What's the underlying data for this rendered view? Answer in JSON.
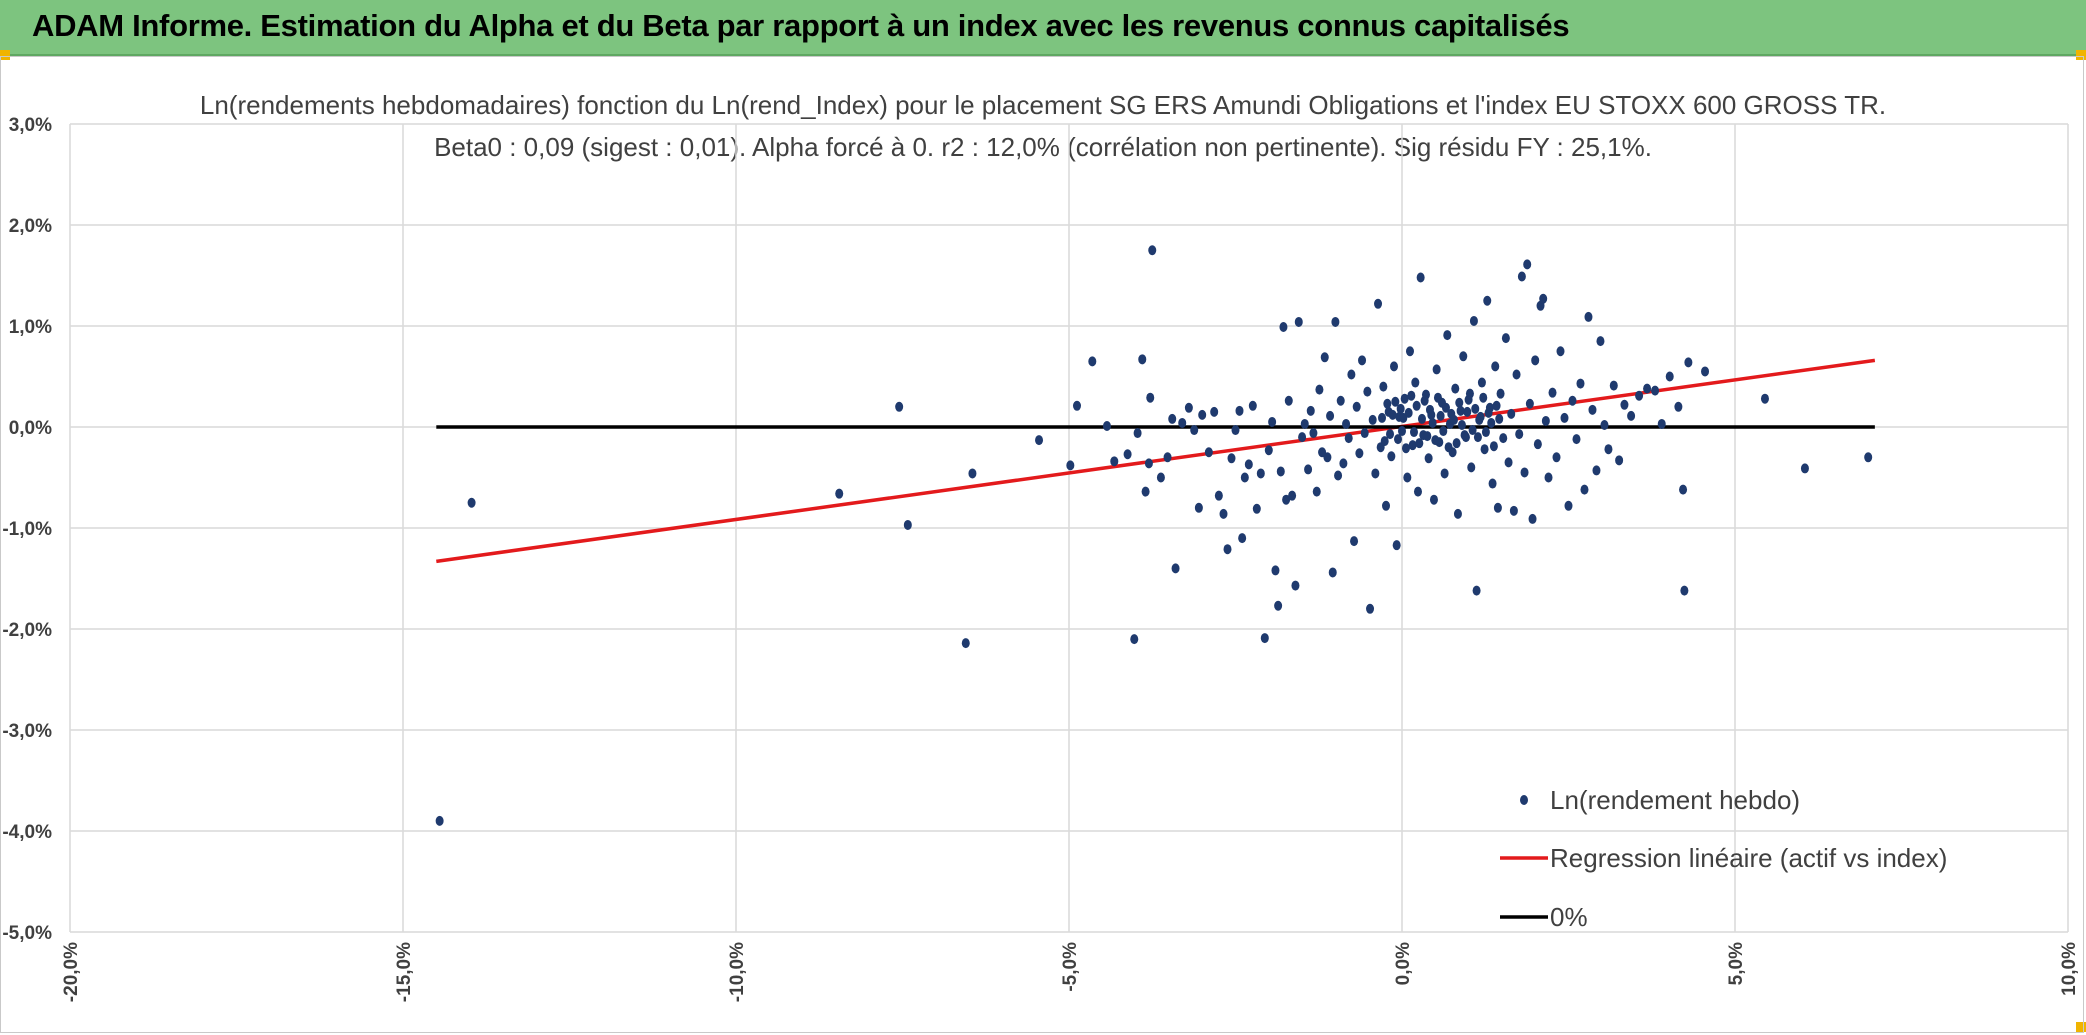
{
  "header": {
    "title": "ADAM Informe. Estimation du Alpha et du Beta par rapport à un index avec les revenus connus capitalisés"
  },
  "colors": {
    "banner": "#7dc47f",
    "points": "#1f3a6e",
    "regression": "#e31a1c",
    "zero_line": "#000000",
    "grid": "#d9d9d9"
  },
  "chart_data": {
    "type": "scatter",
    "title": "Ln(rendements hebdomadaires) fonction du Ln(rend_Index) pour le placement SG ERS Amundi Obligations et l'index EU STOXX 600 GROSS TR.",
    "subtitle": "Beta0 : 0,09 (sigest : 0,01). Alpha forcé à 0. r2 : 12,0% (corrélation non pertinente). Sig résidu FY : 25,1%.",
    "xlabel": "",
    "ylabel": "",
    "xlim": [
      -0.2,
      0.1
    ],
    "ylim": [
      -0.05,
      0.03
    ],
    "x_ticks": [
      "-20,0%",
      "-15,0%",
      "-10,0%",
      "-5,0%",
      "0,0%",
      "5,0%",
      "10,0%"
    ],
    "y_ticks": [
      "3,0%",
      "2,0%",
      "1,0%",
      "0,0%",
      "-1,0%",
      "-2,0%",
      "-3,0%",
      "-4,0%",
      "-5,0%"
    ],
    "grid": true,
    "legend_position": "bottom-right",
    "series": [
      {
        "name": "Ln(rendement hebdo)",
        "kind": "points",
        "points": [
          [
            -0.1445,
            -0.039
          ],
          [
            -0.1397,
            -0.0075
          ],
          [
            -0.0845,
            -0.0066
          ],
          [
            -0.0755,
            0.002
          ],
          [
            -0.0742,
            -0.0097
          ],
          [
            -0.0655,
            -0.0214
          ],
          [
            -0.0645,
            -0.0046
          ],
          [
            -0.0545,
            -0.0013
          ],
          [
            -0.0498,
            -0.0038
          ],
          [
            -0.0488,
            0.0021
          ],
          [
            -0.0465,
            0.0065
          ],
          [
            -0.0443,
            0.0001
          ],
          [
            -0.0432,
            -0.0034
          ],
          [
            -0.0412,
            -0.0027
          ],
          [
            -0.0402,
            -0.021
          ],
          [
            -0.0397,
            -0.0006
          ],
          [
            -0.039,
            0.0067
          ],
          [
            -0.0385,
            -0.0064
          ],
          [
            -0.038,
            -0.0036
          ],
          [
            -0.0378,
            0.0029
          ],
          [
            -0.0375,
            0.0175
          ],
          [
            -0.0362,
            -0.005
          ],
          [
            -0.0352,
            -0.003
          ],
          [
            -0.0345,
            0.0008
          ],
          [
            -0.034,
            -0.014
          ],
          [
            -0.033,
            0.0004
          ],
          [
            -0.032,
            0.0019
          ],
          [
            -0.0312,
            -0.0003
          ],
          [
            -0.0305,
            -0.008
          ],
          [
            -0.03,
            0.0012
          ],
          [
            -0.029,
            -0.0025
          ],
          [
            -0.0282,
            0.0015
          ],
          [
            -0.0275,
            -0.0068
          ],
          [
            -0.0268,
            -0.0086
          ],
          [
            -0.0262,
            -0.0121
          ],
          [
            -0.0256,
            -0.0031
          ],
          [
            -0.025,
            -0.0003
          ],
          [
            -0.0244,
            0.0016
          ],
          [
            -0.024,
            -0.011
          ],
          [
            -0.0236,
            -0.005
          ],
          [
            -0.023,
            -0.0037
          ],
          [
            -0.0224,
            0.0021
          ],
          [
            -0.0218,
            -0.0081
          ],
          [
            -0.0212,
            -0.0046
          ],
          [
            -0.0206,
            -0.0209
          ],
          [
            -0.02,
            -0.0023
          ],
          [
            -0.0195,
            0.0005
          ],
          [
            -0.019,
            -0.0142
          ],
          [
            -0.0186,
            -0.0177
          ],
          [
            -0.0182,
            -0.0044
          ],
          [
            -0.0178,
            0.0099
          ],
          [
            -0.0174,
            -0.0072
          ],
          [
            -0.017,
            0.0026
          ],
          [
            -0.0165,
            -0.0068
          ],
          [
            -0.016,
            -0.0157
          ],
          [
            -0.0155,
            0.0104
          ],
          [
            -0.015,
            -0.001
          ],
          [
            -0.0146,
            0.0003
          ],
          [
            -0.0141,
            -0.0042
          ],
          [
            -0.0137,
            0.0016
          ],
          [
            -0.0133,
            -0.0006
          ],
          [
            -0.0128,
            -0.0064
          ],
          [
            -0.0124,
            0.0037
          ],
          [
            -0.012,
            -0.0025
          ],
          [
            -0.0116,
            0.0069
          ],
          [
            -0.0112,
            -0.003
          ],
          [
            -0.0108,
            0.0011
          ],
          [
            -0.0104,
            -0.0144
          ],
          [
            -0.01,
            0.0104
          ],
          [
            -0.0096,
            -0.0048
          ],
          [
            -0.0092,
            0.0026
          ],
          [
            -0.0088,
            -0.0036
          ],
          [
            -0.0084,
            0.0003
          ],
          [
            -0.008,
            -0.0011
          ],
          [
            -0.0076,
            0.0052
          ],
          [
            -0.0072,
            -0.0113
          ],
          [
            -0.0068,
            0.002
          ],
          [
            -0.0064,
            -0.0026
          ],
          [
            -0.006,
            0.0066
          ],
          [
            -0.0056,
            -0.0006
          ],
          [
            -0.0052,
            0.0035
          ],
          [
            -0.0048,
            -0.018
          ],
          [
            -0.0044,
            0.0007
          ],
          [
            -0.004,
            -0.0046
          ],
          [
            -0.0036,
            0.0122
          ],
          [
            -0.0032,
            -0.002
          ],
          [
            -0.0028,
            0.004
          ],
          [
            -0.0024,
            -0.0078
          ],
          [
            -0.002,
            0.0015
          ],
          [
            -0.0016,
            -0.0029
          ],
          [
            -0.0012,
            0.006
          ],
          [
            -0.0008,
            -0.0117
          ],
          [
            -0.0004,
            0.001
          ],
          [
            0.0,
            -0.0004
          ],
          [
            0.0004,
            0.0028
          ],
          [
            0.0008,
            -0.005
          ],
          [
            0.0012,
            0.0075
          ],
          [
            0.0016,
            -0.0018
          ],
          [
            0.002,
            0.0044
          ],
          [
            0.0024,
            -0.0064
          ],
          [
            0.0028,
            0.0148
          ],
          [
            0.0032,
            -0.0008
          ],
          [
            0.0036,
            0.0032
          ],
          [
            0.004,
            -0.0031
          ],
          [
            0.0044,
            0.0012
          ],
          [
            0.0048,
            -0.0072
          ],
          [
            0.0052,
            0.0057
          ],
          [
            0.0056,
            -0.0015
          ],
          [
            0.006,
            0.0024
          ],
          [
            0.0064,
            -0.0046
          ],
          [
            0.0068,
            0.0091
          ],
          [
            0.0072,
            0.0003
          ],
          [
            0.0076,
            -0.0025
          ],
          [
            0.008,
            0.0038
          ],
          [
            0.0084,
            -0.0086
          ],
          [
            0.0088,
            0.0016
          ],
          [
            0.0092,
            0.007
          ],
          [
            0.0096,
            -0.001
          ],
          [
            0.01,
            0.0027
          ],
          [
            0.0104,
            -0.004
          ],
          [
            0.0108,
            0.0105
          ],
          [
            0.0112,
            -0.0162
          ],
          [
            0.0116,
            0.0007
          ],
          [
            0.012,
            0.0044
          ],
          [
            0.0124,
            -0.0022
          ],
          [
            0.0128,
            0.0125
          ],
          [
            0.0132,
            0.0019
          ],
          [
            0.0136,
            -0.0056
          ],
          [
            0.014,
            0.006
          ],
          [
            0.0144,
            -0.008
          ],
          [
            0.0148,
            0.0033
          ],
          [
            0.0152,
            -0.0011
          ],
          [
            0.0156,
            0.0088
          ],
          [
            0.016,
            -0.0035
          ],
          [
            0.0164,
            0.0013
          ],
          [
            0.0168,
            -0.0083
          ],
          [
            0.0172,
            0.0052
          ],
          [
            0.0176,
            -0.0007
          ],
          [
            0.018,
            0.0149
          ],
          [
            0.0184,
            -0.0045
          ],
          [
            0.0188,
            0.0161
          ],
          [
            0.0192,
            0.0023
          ],
          [
            0.0196,
            -0.0091
          ],
          [
            0.02,
            0.0066
          ],
          [
            0.0204,
            -0.0017
          ],
          [
            0.0208,
            0.012
          ],
          [
            0.0212,
            0.0127
          ],
          [
            0.0216,
            0.0006
          ],
          [
            0.022,
            -0.005
          ],
          [
            0.0226,
            0.0034
          ],
          [
            0.0232,
            -0.003
          ],
          [
            0.0238,
            0.0075
          ],
          [
            0.0244,
            0.0009
          ],
          [
            0.025,
            -0.0078
          ],
          [
            0.0256,
            0.0026
          ],
          [
            0.0262,
            -0.0012
          ],
          [
            0.0268,
            0.0043
          ],
          [
            0.0274,
            -0.0062
          ],
          [
            0.028,
            0.0109
          ],
          [
            0.0286,
            0.0017
          ],
          [
            0.0292,
            -0.0043
          ],
          [
            0.0298,
            0.0085
          ],
          [
            0.0304,
            0.0002
          ],
          [
            0.031,
            -0.0022
          ],
          [
            0.0318,
            0.0041
          ],
          [
            0.0326,
            -0.0033
          ],
          [
            0.0334,
            0.0022
          ],
          [
            0.0344,
            0.0011
          ],
          [
            0.0356,
            0.0031
          ],
          [
            0.0368,
            0.0038
          ],
          [
            0.038,
            0.0036
          ],
          [
            0.039,
            0.0003
          ],
          [
            0.0402,
            0.005
          ],
          [
            0.0415,
            0.002
          ],
          [
            0.0422,
            -0.0062
          ],
          [
            0.0424,
            -0.0162
          ],
          [
            0.043,
            0.0064
          ],
          [
            0.0455,
            0.0055
          ],
          [
            0.0545,
            0.0028
          ],
          [
            0.0605,
            -0.0041
          ],
          [
            0.07,
            -0.003
          ],
          [
            -0.001,
            0.0025
          ],
          [
            -0.0006,
            -0.0012
          ],
          [
            -0.0002,
            0.0018
          ],
          [
            0.0002,
            0.0009
          ],
          [
            0.0006,
            -0.0021
          ],
          [
            0.001,
            0.0014
          ],
          [
            0.0014,
            0.0031
          ],
          [
            0.0018,
            -0.0005
          ],
          [
            0.0022,
            0.0021
          ],
          [
            0.0026,
            -0.0016
          ],
          [
            0.003,
            0.0008
          ],
          [
            0.0034,
            0.0026
          ],
          [
            0.0038,
            -0.0009
          ],
          [
            0.0042,
            0.0017
          ],
          [
            0.0046,
            0.0004
          ],
          [
            0.005,
            -0.0013
          ],
          [
            0.0054,
            0.0029
          ],
          [
            0.0058,
            0.0011
          ],
          [
            0.0062,
            -0.0004
          ],
          [
            0.0066,
            0.0019
          ],
          [
            0.007,
            -0.002
          ],
          [
            0.0074,
            0.0013
          ],
          [
            0.0078,
            0.0007
          ],
          [
            0.0082,
            -0.0016
          ],
          [
            0.0086,
            0.0024
          ],
          [
            0.009,
            0.0002
          ],
          [
            0.0094,
            -0.0008
          ],
          [
            0.0098,
            0.0015
          ],
          [
            0.0102,
            0.0033
          ],
          [
            0.0106,
            -0.0003
          ],
          [
            -0.003,
            0.0009
          ],
          [
            -0.0026,
            -0.0014
          ],
          [
            -0.0022,
            0.0023
          ],
          [
            -0.0018,
            -0.0007
          ],
          [
            -0.0014,
            0.0012
          ],
          [
            0.011,
            0.0018
          ],
          [
            0.0114,
            -0.001
          ],
          [
            0.0118,
            0.001
          ],
          [
            0.0122,
            0.0029
          ],
          [
            0.0126,
            -0.0005
          ],
          [
            0.013,
            0.0014
          ],
          [
            0.0134,
            0.0004
          ],
          [
            0.0138,
            -0.0019
          ],
          [
            0.0142,
            0.0021
          ],
          [
            0.0146,
            0.0008
          ]
        ]
      },
      {
        "name": "Regression linéaire (actif vs index)",
        "kind": "line",
        "points": [
          [
            -0.145,
            -0.0133
          ],
          [
            0.071,
            0.0066
          ]
        ]
      },
      {
        "name": "0%",
        "kind": "line",
        "points": [
          [
            -0.145,
            0.0
          ],
          [
            0.071,
            0.0
          ]
        ]
      }
    ]
  }
}
